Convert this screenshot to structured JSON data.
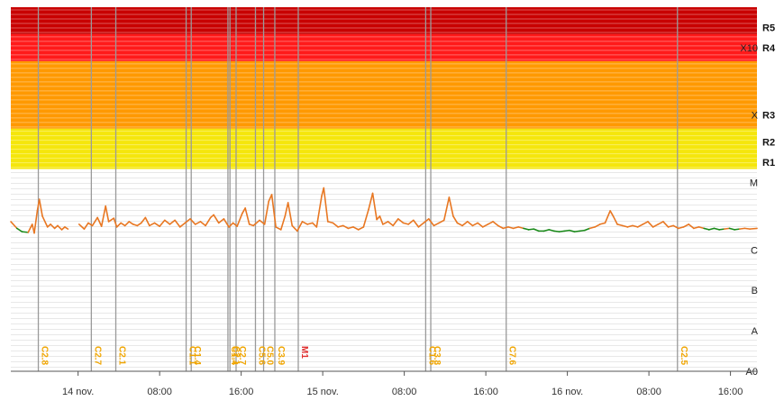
{
  "chart_data": {
    "type": "line",
    "title": "",
    "xlabel": "",
    "ylabel": "",
    "scale": "log",
    "x_range_hours": [
      -6.6,
      66.6
    ],
    "x_tick_labels": [
      {
        "h": 0,
        "label": "14 nov."
      },
      {
        "h": 8,
        "label": "08:00"
      },
      {
        "h": 16,
        "label": "16:00"
      },
      {
        "h": 24,
        "label": "15 nov."
      },
      {
        "h": 32,
        "label": "08:00"
      },
      {
        "h": 40,
        "label": "16:00"
      },
      {
        "h": 48,
        "label": "16 nov."
      },
      {
        "h": 56,
        "label": "08:00"
      },
      {
        "h": 64,
        "label": "16:00"
      }
    ],
    "flux_classes": [
      {
        "label": "A0",
        "log": -8
      },
      {
        "label": "A",
        "log": -7.4
      },
      {
        "label": "B",
        "log": -6.8
      },
      {
        "label": "C",
        "log": -6.2
      },
      {
        "label": "M",
        "log": -5.2
      },
      {
        "label": "X",
        "log": -4.2
      },
      {
        "label": "X10",
        "log": -3.2
      }
    ],
    "radio_blackout_labels": [
      {
        "label": "R1",
        "log": -4.9
      },
      {
        "label": "R2",
        "log": -4.6
      },
      {
        "label": "R3",
        "log": -4.2
      },
      {
        "label": "R4",
        "log": -3.2
      },
      {
        "label": "R5",
        "log": -2.9
      }
    ],
    "bands": [
      {
        "from": -5,
        "to": -4.4,
        "color": "#f5e60c"
      },
      {
        "from": -4.4,
        "to": -3.4,
        "color": "#ff9900"
      },
      {
        "from": -3.4,
        "to": -3.0,
        "color": "#ff1a1a"
      },
      {
        "from": -3.0,
        "to": -2.5,
        "color": "#c80000"
      }
    ],
    "series": [
      {
        "color": "#e87722",
        "points": [
          [
            -6.6,
            -5.78
          ],
          [
            -6.0,
            -5.88
          ],
          [
            -5.5,
            -5.93
          ],
          [
            -4.9,
            -5.94
          ],
          [
            -4.5,
            -5.82
          ],
          [
            -4.3,
            -5.95
          ],
          [
            -4.0,
            -5.62
          ],
          [
            -3.8,
            -5.45
          ],
          [
            -3.5,
            -5.7
          ],
          [
            -3.0,
            -5.86
          ],
          [
            -2.7,
            -5.82
          ],
          [
            -2.3,
            -5.88
          ],
          [
            -2.0,
            -5.84
          ],
          [
            -1.6,
            -5.9
          ],
          [
            -1.3,
            -5.86
          ],
          [
            -1.0,
            -5.89
          ],
          [
            0.1,
            -5.82
          ],
          [
            0.6,
            -5.89
          ],
          [
            1.0,
            -5.8
          ],
          [
            1.4,
            -5.84
          ],
          [
            1.9,
            -5.72
          ],
          [
            2.3,
            -5.85
          ],
          [
            2.7,
            -5.55
          ],
          [
            3.0,
            -5.78
          ],
          [
            3.5,
            -5.73
          ],
          [
            3.8,
            -5.86
          ],
          [
            4.2,
            -5.8
          ],
          [
            4.6,
            -5.84
          ],
          [
            5.0,
            -5.78
          ],
          [
            5.4,
            -5.82
          ],
          [
            5.8,
            -5.84
          ],
          [
            6.2,
            -5.8
          ],
          [
            6.6,
            -5.72
          ],
          [
            7.0,
            -5.84
          ],
          [
            7.5,
            -5.8
          ],
          [
            8.0,
            -5.85
          ],
          [
            8.5,
            -5.76
          ],
          [
            9.0,
            -5.82
          ],
          [
            9.5,
            -5.76
          ],
          [
            10.0,
            -5.86
          ],
          [
            10.5,
            -5.8
          ],
          [
            11.0,
            -5.74
          ],
          [
            11.5,
            -5.82
          ],
          [
            12.0,
            -5.78
          ],
          [
            12.5,
            -5.84
          ],
          [
            13.0,
            -5.72
          ],
          [
            13.3,
            -5.68
          ],
          [
            13.8,
            -5.8
          ],
          [
            14.3,
            -5.74
          ],
          [
            14.8,
            -5.86
          ],
          [
            15.2,
            -5.8
          ],
          [
            15.6,
            -5.85
          ],
          [
            16.1,
            -5.66
          ],
          [
            16.4,
            -5.58
          ],
          [
            16.8,
            -5.82
          ],
          [
            17.2,
            -5.84
          ],
          [
            17.8,
            -5.76
          ],
          [
            18.3,
            -5.82
          ],
          [
            18.7,
            -5.48
          ],
          [
            19.0,
            -5.38
          ],
          [
            19.4,
            -5.86
          ],
          [
            19.9,
            -5.9
          ],
          [
            20.3,
            -5.7
          ],
          [
            20.6,
            -5.5
          ],
          [
            21.0,
            -5.84
          ],
          [
            21.5,
            -5.92
          ],
          [
            22.0,
            -5.78
          ],
          [
            22.5,
            -5.82
          ],
          [
            23.0,
            -5.8
          ],
          [
            23.4,
            -5.86
          ],
          [
            23.9,
            -5.4
          ],
          [
            24.1,
            -5.28
          ],
          [
            24.5,
            -5.78
          ],
          [
            25.0,
            -5.8
          ],
          [
            25.5,
            -5.86
          ],
          [
            26.0,
            -5.84
          ],
          [
            26.5,
            -5.88
          ],
          [
            27.0,
            -5.86
          ],
          [
            27.5,
            -5.9
          ],
          [
            28.0,
            -5.86
          ],
          [
            28.5,
            -5.6
          ],
          [
            28.9,
            -5.36
          ],
          [
            29.3,
            -5.75
          ],
          [
            29.6,
            -5.7
          ],
          [
            29.9,
            -5.82
          ],
          [
            30.4,
            -5.78
          ],
          [
            30.9,
            -5.84
          ],
          [
            31.4,
            -5.74
          ],
          [
            31.9,
            -5.8
          ],
          [
            32.4,
            -5.82
          ],
          [
            32.9,
            -5.76
          ],
          [
            33.4,
            -5.86
          ],
          [
            33.9,
            -5.8
          ],
          [
            34.4,
            -5.74
          ],
          [
            34.9,
            -5.84
          ],
          [
            35.4,
            -5.8
          ],
          [
            35.9,
            -5.76
          ],
          [
            36.4,
            -5.42
          ],
          [
            36.8,
            -5.7
          ],
          [
            37.2,
            -5.8
          ],
          [
            37.7,
            -5.84
          ],
          [
            38.2,
            -5.78
          ],
          [
            38.7,
            -5.84
          ],
          [
            39.2,
            -5.8
          ],
          [
            39.7,
            -5.86
          ],
          [
            40.2,
            -5.82
          ],
          [
            40.7,
            -5.78
          ],
          [
            41.2,
            -5.84
          ],
          [
            41.7,
            -5.88
          ],
          [
            42.2,
            -5.86
          ],
          [
            42.7,
            -5.88
          ],
          [
            43.2,
            -5.86
          ],
          [
            43.7,
            -5.88
          ],
          [
            44.2,
            -5.9
          ],
          [
            44.7,
            -5.89
          ],
          [
            45.2,
            -5.92
          ],
          [
            45.7,
            -5.92
          ],
          [
            46.2,
            -5.9
          ],
          [
            46.7,
            -5.92
          ],
          [
            47.2,
            -5.93
          ],
          [
            47.7,
            -5.92
          ],
          [
            48.2,
            -5.91
          ],
          [
            48.7,
            -5.93
          ],
          [
            49.2,
            -5.92
          ],
          [
            49.7,
            -5.91
          ],
          [
            50.2,
            -5.88
          ],
          [
            50.7,
            -5.86
          ],
          [
            51.2,
            -5.82
          ],
          [
            51.7,
            -5.8
          ],
          [
            52.2,
            -5.62
          ],
          [
            52.5,
            -5.7
          ],
          [
            52.9,
            -5.82
          ],
          [
            53.4,
            -5.84
          ],
          [
            53.9,
            -5.86
          ],
          [
            54.4,
            -5.84
          ],
          [
            54.9,
            -5.86
          ],
          [
            55.4,
            -5.82
          ],
          [
            55.9,
            -5.78
          ],
          [
            56.4,
            -5.86
          ],
          [
            56.9,
            -5.82
          ],
          [
            57.4,
            -5.78
          ],
          [
            57.9,
            -5.86
          ],
          [
            58.4,
            -5.84
          ],
          [
            58.9,
            -5.88
          ],
          [
            59.4,
            -5.86
          ],
          [
            59.9,
            -5.82
          ],
          [
            60.4,
            -5.88
          ],
          [
            60.9,
            -5.86
          ],
          [
            61.4,
            -5.88
          ],
          [
            61.9,
            -5.9
          ],
          [
            62.4,
            -5.88
          ],
          [
            62.9,
            -5.9
          ],
          [
            63.4,
            -5.89
          ],
          [
            63.9,
            -5.88
          ],
          [
            64.4,
            -5.9
          ],
          [
            64.9,
            -5.89
          ],
          [
            65.4,
            -5.88
          ],
          [
            65.9,
            -5.89
          ],
          [
            66.6,
            -5.88
          ]
        ]
      }
    ],
    "flares": [
      {
        "h": -3.9,
        "label": "C2.8",
        "cls": "C"
      },
      {
        "h": 1.3,
        "label": "C2.7",
        "cls": "C"
      },
      {
        "h": 3.7,
        "label": "C2.1",
        "cls": "C"
      },
      {
        "h": 10.6,
        "label": "C1.1",
        "cls": "C"
      },
      {
        "h": 11.1,
        "label": "C1.4",
        "cls": "C"
      },
      {
        "h": 14.7,
        "label": "C1.4",
        "cls": "C"
      },
      {
        "h": 14.9,
        "label": "C2.1",
        "cls": "C"
      },
      {
        "h": 15.5,
        "label": "C2.7",
        "cls": "C"
      },
      {
        "h": 17.4,
        "label": "C5.6",
        "cls": "C"
      },
      {
        "h": 18.2,
        "label": "C5.0",
        "cls": "C"
      },
      {
        "h": 19.3,
        "label": "C3.9",
        "cls": "C"
      },
      {
        "h": 21.6,
        "label": "M1",
        "cls": "M"
      },
      {
        "h": 34.1,
        "label": "C1.6",
        "cls": "C"
      },
      {
        "h": 34.6,
        "label": "C3.8",
        "cls": "C"
      },
      {
        "h": 42.0,
        "label": "C7.6",
        "cls": "C"
      },
      {
        "h": 58.8,
        "label": "C2.5",
        "cls": "C"
      }
    ],
    "colors": {
      "curve": "#e87722",
      "quiet": "#1a8a1a",
      "flare_c": "#f0a500",
      "flare_m": "#e03030",
      "flare_line": "#9a9a9a"
    }
  }
}
